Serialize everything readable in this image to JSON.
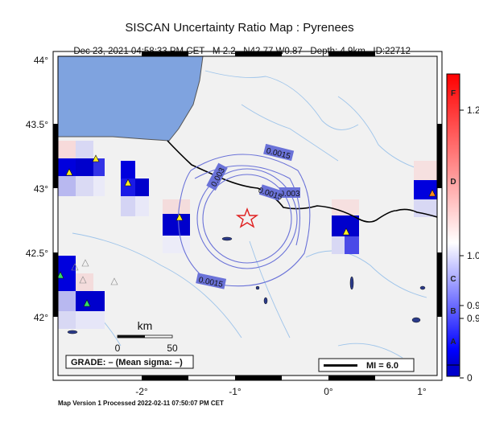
{
  "title": "SISCAN Uncertainty Ratio Map : Pyrenees",
  "event": {
    "datetime": "Dec 23, 2021 04:58:33 PM CET",
    "magnitude": "M 2.2",
    "location": "N42.77 W0.87",
    "depth": "Depth: 4.9km",
    "id": "ID:22712"
  },
  "axes": {
    "lat_labels": [
      "44°",
      "43.5°",
      "43°",
      "42.5°",
      "42°"
    ],
    "lon_labels": [
      "-2°",
      "-1°",
      "0°",
      "1°"
    ],
    "lat_range": [
      41.55,
      44.05
    ],
    "lon_range": [
      -2.9,
      1.15
    ]
  },
  "contour_labels": [
    "0.0015",
    "0.003",
    "0.0015",
    "0.003",
    "0.0015"
  ],
  "scalebar": {
    "unit": "km",
    "ticks": [
      "0",
      "50"
    ]
  },
  "grade_box": "GRADE: – (Mean sigma: –)",
  "mi_box": "MI = 6.0",
  "colorbar": {
    "letters": [
      "F",
      "D",
      "C",
      "B",
      "A"
    ],
    "values": [
      "1.2",
      "1.0",
      "0.9",
      "0.9",
      "0"
    ],
    "colors": [
      "#ff0000",
      "#ffffff",
      "#0000ff",
      "#0000cc"
    ]
  },
  "colors": {
    "sea": "#7fa3df",
    "land": "#f1f1f1",
    "epicenter": "#e02020",
    "contour": "#6a72d8",
    "river": "#9ec4ea"
  },
  "footer": "Map Version 1 Processed 2022-02-11 07:50:07 PM CET"
}
